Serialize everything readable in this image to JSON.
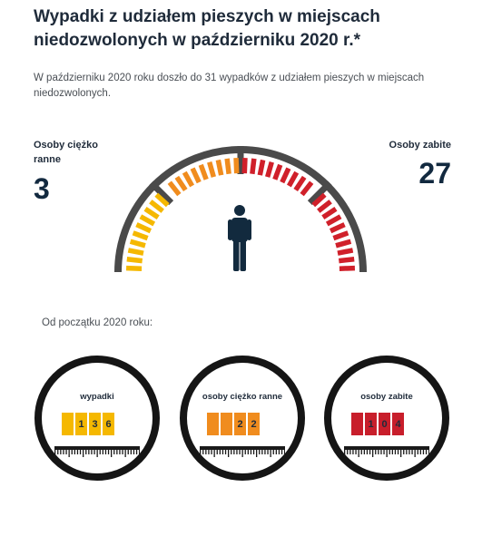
{
  "header": {
    "title": "Wypadki z udziałem pieszych w miejscach niedozwolonych w październiku 2020 r.*",
    "intro": "W październiku 2020 roku doszło do 31 wypadków z udziałem pieszych w miejscach niedozwolonych."
  },
  "gauge": {
    "injured_label": "Osoby ciężko ranne",
    "injured_value": "3",
    "killed_label": "Osoby zabite",
    "killed_value": "27",
    "icon": "pedestrian-icon",
    "colors": {
      "frame": "#4a4a4a",
      "yellow": "#f5b800",
      "orange": "#f08c1e",
      "red": "#d0202a",
      "figure": "#122a3e"
    }
  },
  "summary": {
    "since_label": "Od początku 2020 roku:",
    "counters": [
      {
        "label": "wypadki",
        "digits": [
          "",
          "1",
          "3",
          "6"
        ],
        "color": "#f5b800"
      },
      {
        "label": "osoby ciężko ranne",
        "digits": [
          "",
          "",
          "2",
          "2"
        ],
        "color": "#f08c1e"
      },
      {
        "label": "osoby zabite",
        "digits": [
          "",
          "1",
          "0",
          "4"
        ],
        "color": "#c81e2b"
      }
    ]
  }
}
